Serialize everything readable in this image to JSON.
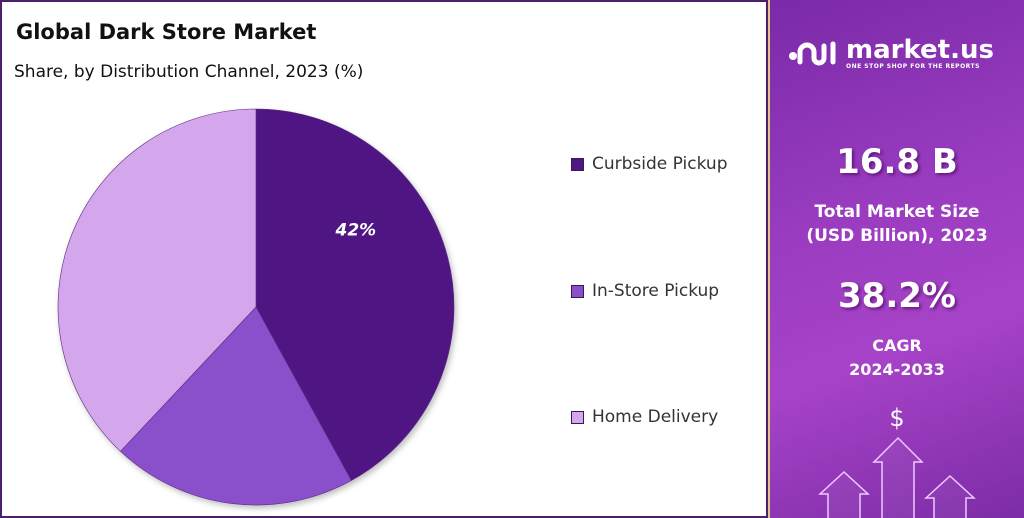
{
  "header": {
    "title": "Global Dark Store Market",
    "subtitle": "Share, by Distribution Channel, 2023 (%)"
  },
  "chart_data": {
    "type": "pie",
    "title": "Global Dark Store Market",
    "subtitle": "Share, by Distribution Channel, 2023 (%)",
    "categories": [
      "Curbside Pickup",
      "In-Store Pickup",
      "Home Delivery"
    ],
    "values": [
      42,
      20,
      38
    ],
    "data_labels": [
      "42%",
      "",
      ""
    ],
    "colors": [
      "#4f1783",
      "#8a4fcb",
      "#d4a6ec"
    ],
    "start": "top",
    "direction": "clockwise",
    "legend_placement": "right"
  },
  "sidebar": {
    "brand": "market.us",
    "tagline": "ONE STOP SHOP FOR THE REPORTS",
    "market_size": "16.8 B",
    "market_size_label_1": "Total Market Size",
    "market_size_label_2": "(USD Billion), 2023",
    "cagr": "38.2%",
    "cagr_label_1": "CAGR",
    "cagr_label_2": "2024-2033",
    "currency_symbol": "$"
  }
}
